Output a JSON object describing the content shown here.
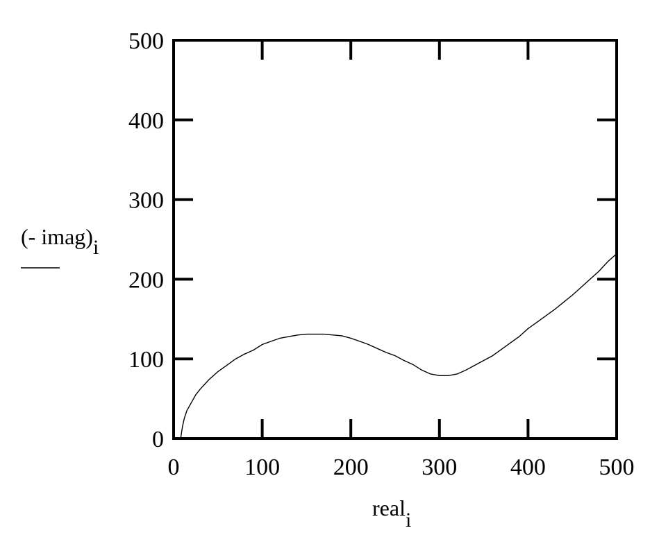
{
  "chart_data": {
    "type": "line",
    "title": "",
    "xlabel": "real",
    "xlabel_subscript": "i",
    "ylabel": "(- imag)",
    "ylabel_subscript": "i",
    "xlim": [
      0,
      500
    ],
    "ylim": [
      0,
      500
    ],
    "x_ticks": [
      0,
      100,
      200,
      300,
      400,
      500
    ],
    "y_ticks": [
      0,
      100,
      200,
      300,
      400,
      500
    ],
    "grid": false,
    "legend": "series-sample-line",
    "series": [
      {
        "name": "",
        "color": "#000000",
        "x": [
          8,
          9,
          10,
          12,
          15,
          20,
          25,
          30,
          40,
          50,
          60,
          70,
          80,
          90,
          100,
          110,
          120,
          130,
          140,
          150,
          160,
          170,
          180,
          190,
          200,
          210,
          220,
          230,
          240,
          250,
          260,
          270,
          280,
          290,
          300,
          310,
          320,
          330,
          340,
          350,
          360,
          370,
          380,
          390,
          400,
          410,
          420,
          430,
          440,
          450,
          460,
          470,
          480,
          490,
          500
        ],
        "y": [
          0,
          8,
          15,
          25,
          35,
          45,
          55,
          62,
          74,
          84,
          92,
          100,
          106,
          111,
          118,
          122,
          126,
          128,
          130,
          131,
          131,
          131,
          130,
          129,
          126,
          122,
          118,
          113,
          108,
          104,
          98,
          93,
          86,
          81,
          79,
          79,
          81,
          86,
          92,
          98,
          104,
          112,
          120,
          128,
          138,
          146,
          154,
          162,
          171,
          180,
          190,
          200,
          210,
          222,
          232
        ]
      }
    ]
  }
}
